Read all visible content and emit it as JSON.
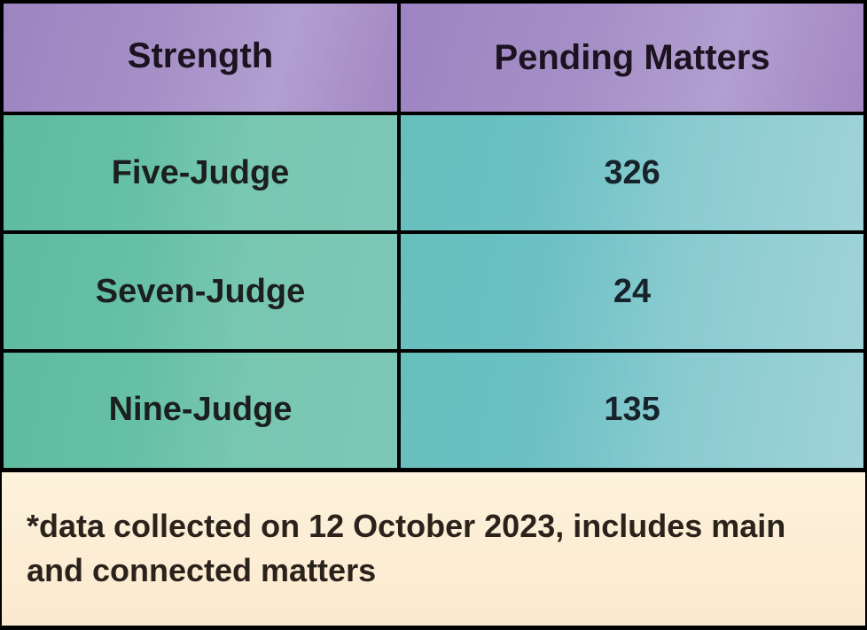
{
  "table": {
    "type": "table",
    "columns": [
      "Strength",
      "Pending Matters"
    ],
    "rows": [
      [
        "Five-Judge",
        "326"
      ],
      [
        "Seven-Judge",
        "24"
      ],
      [
        "Nine-Judge",
        "135"
      ]
    ],
    "header": {
      "background_gradient": [
        "#9d84c2",
        "#a68fc6",
        "#b29ed0",
        "#a387c1"
      ],
      "text_color": "#1b1320",
      "fontsize": 40,
      "fontweight": 800
    },
    "left_col": {
      "background_gradient": [
        "#5fbb9f",
        "#66c0a6",
        "#78c7b0",
        "#7dc7b7"
      ],
      "text_color": "#1b1f1d",
      "fontsize": 38,
      "fontweight": 800,
      "width_pct": 46
    },
    "right_col": {
      "background_gradient": [
        "#67bfbc",
        "#6cc0c4",
        "#89cbd0",
        "#9fd3d8"
      ],
      "text_color": "#17232a",
      "fontsize": 38,
      "fontweight": 800,
      "width_pct": 54
    },
    "border_color": "#000000",
    "border_width": 4,
    "row_height_header": 126,
    "row_height_data": 134,
    "footer": {
      "text": "*data collected on 12 October 2023, includes main and connected matters",
      "background_gradient": [
        "#fdf2db",
        "#fbe9cf"
      ],
      "text_color": "#2a221b",
      "fontsize": 36,
      "fontweight": 600,
      "height": 178
    }
  }
}
